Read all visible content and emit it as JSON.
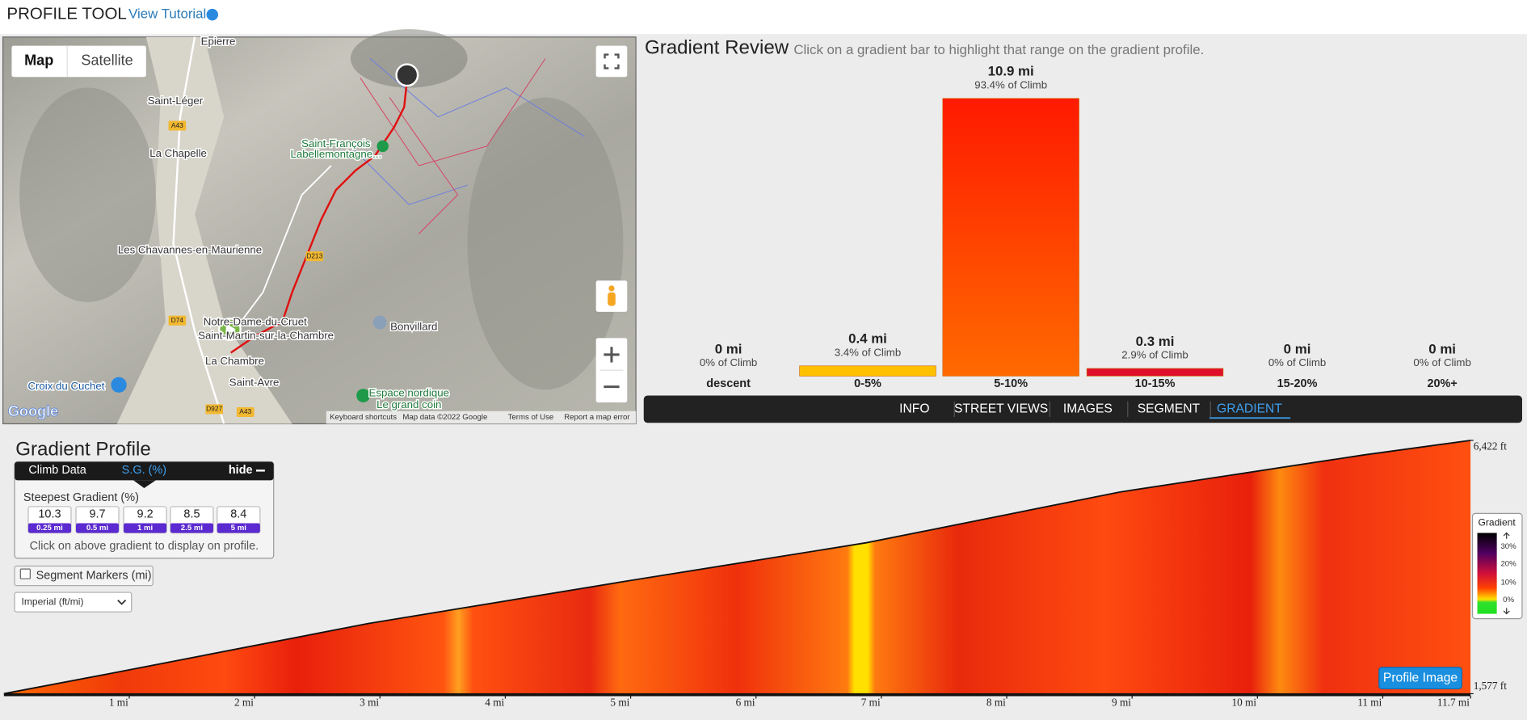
{
  "header": {
    "title": "PROFILE TOOL",
    "tutorial_link": "View Tutorial"
  },
  "map": {
    "buttons": [
      "Map",
      "Satellite"
    ],
    "places": [
      "Epierre",
      "Saint-Léger",
      "La Chapelle",
      "Les Chavannes-en-Maurienne",
      "Saint-François",
      "Labellemontagne...",
      "Notre-Dame-du-Cruet",
      "Saint-Martin-sur-la-Chambre",
      "La Chambre",
      "Saint-Avre",
      "Bonvillard",
      "Croix du Cuchet",
      "Espace nordique",
      "Le grand coin"
    ],
    "roads": [
      "A43",
      "D213",
      "D74",
      "D927",
      "A43"
    ],
    "footer": [
      "Keyboard shortcuts",
      "Map data ©2022 Google",
      "Terms of Use",
      "Report a map error"
    ],
    "logo": "Google"
  },
  "gradient_review": {
    "title": "Gradient Review",
    "hint": "Click on a gradient bar to highlight that range on the gradient profile.",
    "bins": [
      {
        "miles": 0,
        "distance": "0 mi",
        "share": "0% of Climb",
        "range": "descent",
        "color": "#ffcc00"
      },
      {
        "miles": 0.4,
        "distance": "0.4 mi",
        "share": "3.4% of Climb",
        "range": "0-5%",
        "color": "#ffc000"
      },
      {
        "miles": 10.9,
        "distance": "10.9 mi",
        "share": "93.4% of Climb",
        "range": "5-10%",
        "color": "#ff2000"
      },
      {
        "miles": 0.3,
        "distance": "0.3 mi",
        "share": "2.9% of Climb",
        "range": "10-15%",
        "color": "#e0102a"
      },
      {
        "miles": 0,
        "distance": "0 mi",
        "share": "0% of Climb",
        "range": "15-20%",
        "color": "#a00050"
      },
      {
        "miles": 0,
        "distance": "0 mi",
        "share": "0% of Climb",
        "range": "20%+",
        "color": "#400060"
      }
    ],
    "tabs": [
      "INFO",
      "STREET VIEWS",
      "IMAGES",
      "SEGMENT",
      "GRADIENT"
    ],
    "active_tab": 4
  },
  "gradient_profile": {
    "title": "Gradient Profile",
    "tabs": [
      "Climb Data",
      "S.G. (%)",
      "hide"
    ],
    "steepest_title": "Steepest Gradient (%)",
    "steepest": [
      {
        "value": 10.3,
        "span": "0.25 mi"
      },
      {
        "value": 9.7,
        "span": "0.5 mi"
      },
      {
        "value": 9.2,
        "span": "1 mi"
      },
      {
        "value": 8.5,
        "span": "2.5 mi"
      },
      {
        "value": 8.4,
        "span": "5 mi"
      }
    ],
    "hint": "Click on above gradient to display on profile.",
    "segment_markers": "Segment Markers (mi)",
    "units": "Imperial (ft/mi)",
    "xlim": [
      0,
      11.7
    ],
    "ylim": [
      1577,
      6422
    ],
    "yticks": [
      {
        "value": 6422,
        "label": "6,422 ft"
      },
      {
        "value": 1577,
        "label": "1,577 ft"
      }
    ],
    "xticks": [
      {
        "value": 1,
        "label": "1 mi"
      },
      {
        "value": 2,
        "label": "2 mi"
      },
      {
        "value": 3,
        "label": "3 mi"
      },
      {
        "value": 4,
        "label": "4 mi"
      },
      {
        "value": 5,
        "label": "5 mi"
      },
      {
        "value": 6,
        "label": "6 mi"
      },
      {
        "value": 7,
        "label": "7 mi"
      },
      {
        "value": 8,
        "label": "8 mi"
      },
      {
        "value": 9,
        "label": "9 mi"
      },
      {
        "value": 10,
        "label": "10 mi"
      },
      {
        "value": 11,
        "label": "11 mi"
      },
      {
        "value": 11.7,
        "label": "11.7 mi"
      }
    ],
    "legend": {
      "title": "Gradient",
      "ticks": [
        "30%",
        "20%",
        "10%",
        "0%"
      ]
    },
    "button": "Profile Image"
  }
}
